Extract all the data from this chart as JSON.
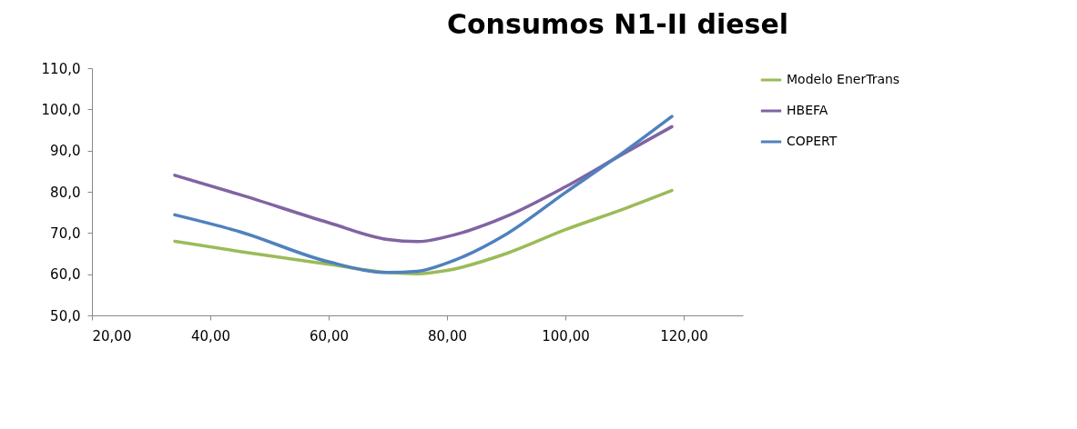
{
  "chart_data": {
    "type": "line",
    "title": "Consumos N1-II diesel",
    "x": [
      34,
      45,
      60,
      70,
      75,
      80,
      90,
      100,
      110,
      118
    ],
    "series": [
      {
        "name": "Modelo EnerTrans",
        "color": "#9bbb59",
        "values": [
          68.0,
          65.5,
          62.4,
          60.4,
          60.1,
          60.9,
          65.0,
          70.8,
          75.9,
          80.3
        ]
      },
      {
        "name": "HBEFA",
        "color": "#8064a2",
        "values": [
          84.0,
          79.3,
          72.5,
          68.4,
          67.9,
          69.1,
          74.0,
          81.2,
          89.4,
          95.8
        ]
      },
      {
        "name": "COPERT",
        "color": "#4f81bd",
        "values": [
          74.4,
          70.3,
          63.0,
          60.4,
          60.7,
          62.7,
          69.7,
          79.8,
          89.8,
          98.3
        ]
      }
    ],
    "xlim": [
      20,
      130
    ],
    "xticks": [
      {
        "value": 20,
        "label": "20,00"
      },
      {
        "value": 40,
        "label": "40,00"
      },
      {
        "value": 60,
        "label": "60,00"
      },
      {
        "value": 80,
        "label": "80,00"
      },
      {
        "value": 100,
        "label": "100,00"
      },
      {
        "value": 120,
        "label": "120,00"
      }
    ],
    "ylim": [
      50,
      110
    ],
    "yticks": [
      {
        "value": 50,
        "label": "50,0"
      },
      {
        "value": 60,
        "label": "60,0"
      },
      {
        "value": 70,
        "label": "70,0"
      },
      {
        "value": 80,
        "label": "80,0"
      },
      {
        "value": 90,
        "label": "90,0"
      },
      {
        "value": 100,
        "label": "100,0"
      },
      {
        "value": 110,
        "label": "110,0"
      }
    ],
    "legend": "right"
  }
}
